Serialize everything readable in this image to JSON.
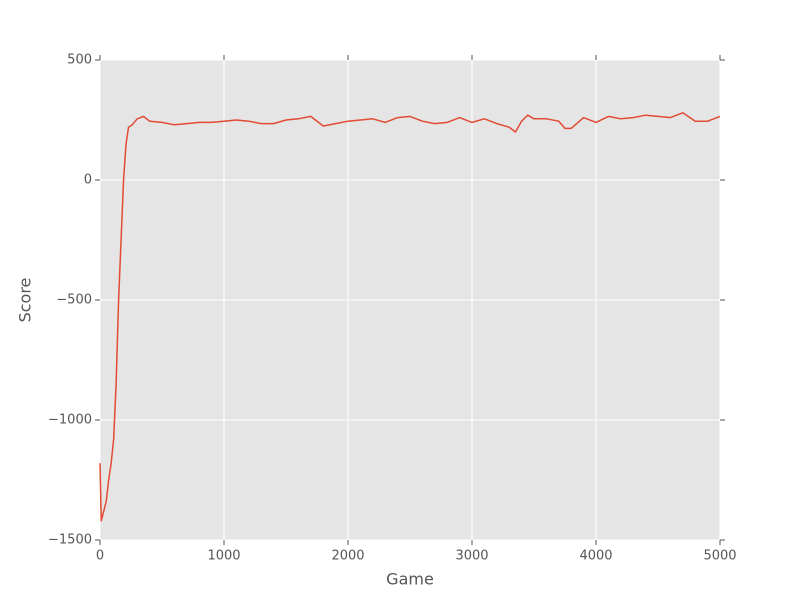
{
  "chart_data": {
    "type": "line",
    "x_label": "Game",
    "y_label": "Score",
    "x": [
      0,
      10,
      30,
      50,
      70,
      90,
      110,
      130,
      150,
      170,
      190,
      210,
      230,
      260,
      300,
      350,
      400,
      500,
      600,
      700,
      800,
      900,
      1000,
      1100,
      1200,
      1300,
      1400,
      1500,
      1600,
      1700,
      1800,
      1900,
      2000,
      2100,
      2200,
      2300,
      2400,
      2500,
      2600,
      2700,
      2800,
      2900,
      3000,
      3100,
      3200,
      3300,
      3350,
      3400,
      3450,
      3500,
      3600,
      3700,
      3750,
      3800,
      3900,
      4000,
      4100,
      4200,
      4300,
      4400,
      4500,
      4600,
      4700,
      4800,
      4900,
      5000
    ],
    "values": [
      -1180,
      -1420,
      -1380,
      -1340,
      -1250,
      -1180,
      -1080,
      -850,
      -500,
      -250,
      0,
      150,
      220,
      230,
      255,
      265,
      245,
      240,
      230,
      235,
      240,
      240,
      245,
      250,
      245,
      235,
      235,
      250,
      255,
      265,
      225,
      235,
      245,
      250,
      255,
      240,
      260,
      265,
      245,
      235,
      240,
      260,
      240,
      255,
      235,
      220,
      200,
      245,
      270,
      255,
      255,
      245,
      215,
      215,
      260,
      240,
      265,
      255,
      260,
      270,
      265,
      260,
      280,
      245,
      245,
      265
    ],
    "color": "#e24a33",
    "xlim": [
      0,
      5000
    ],
    "xticks": [
      0,
      1000,
      2000,
      3000,
      4000,
      5000
    ],
    "ylim": [
      -1500,
      500
    ],
    "yticks": [
      {
        "value": -1500,
        "label": "−1500"
      },
      {
        "value": -1000,
        "label": "−1000"
      },
      {
        "value": -500,
        "label": "−500"
      },
      0,
      500
    ],
    "grid": true
  }
}
